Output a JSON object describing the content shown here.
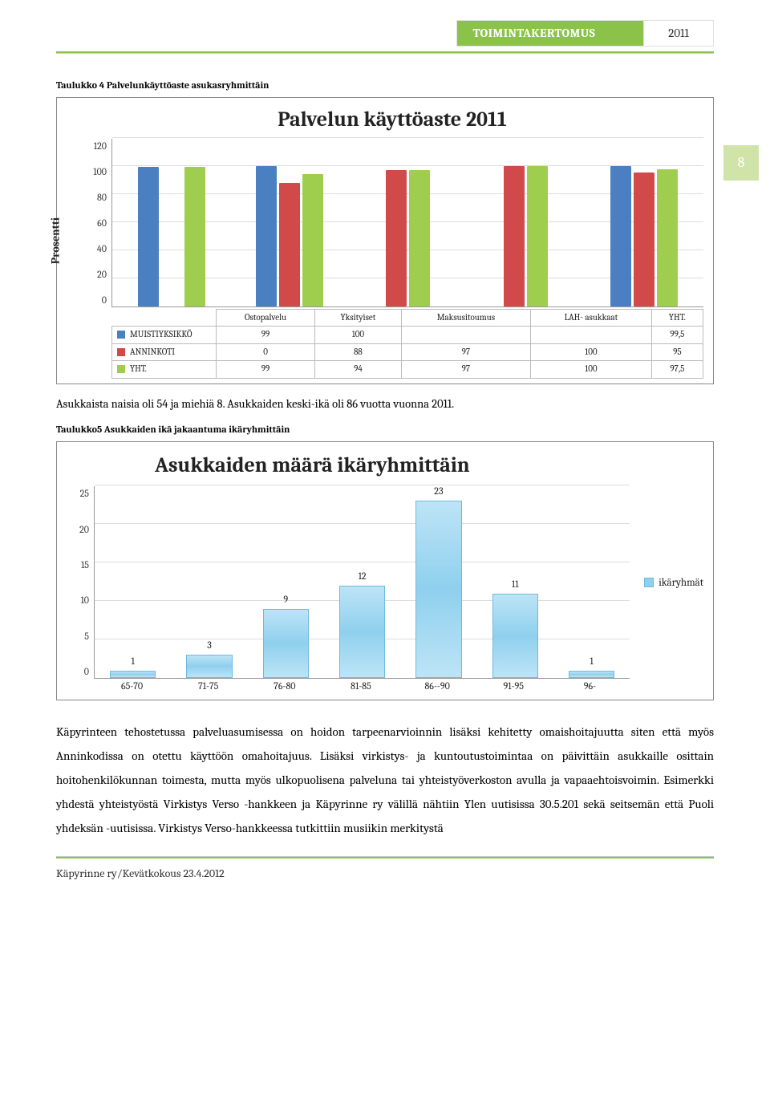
{
  "header": {
    "title": "TOIMINTAKERTOMUS",
    "year": "2011",
    "page_number": "8"
  },
  "chart1": {
    "caption": "Taulukko 4 Palvelunkäyttöaste asukasryhmittäin",
    "title": "Palvelun käyttöaste 2011",
    "ylabel": "Prosentti",
    "ylim_max": 120,
    "yticks": [
      "120",
      "100",
      "80",
      "60",
      "40",
      "20",
      "0"
    ],
    "categories": [
      "Ostopalvelu",
      "Yksityiset",
      "Maksusitoumus",
      "LAH- asukkaat",
      "YHT."
    ],
    "series": [
      {
        "name": "MUISTIYKSIKKÖ",
        "color": "#4a7fc1",
        "values": [
          "99",
          "100",
          "",
          "",
          "99,5"
        ]
      },
      {
        "name": "ANNINKOTI",
        "color": "#d14a4a",
        "values": [
          "0",
          "88",
          "97",
          "100",
          "95"
        ]
      },
      {
        "name": "YHT.",
        "color": "#9fce4e",
        "values": [
          "99",
          "94",
          "97",
          "100",
          "97,5"
        ]
      }
    ]
  },
  "para1_a": "Asukkaista naisia oli 54 ja miehiä 8. Asukkaiden keski-ikä oli 86 vuotta vuonna 2011.",
  "chart2": {
    "caption": "Taulukko5 Asukkaiden ikä jakaantuma ikäryhmittäin",
    "title": "Asukkaiden määrä ikäryhmittäin",
    "legend_label": "ikäryhmät",
    "ylim_max": 25,
    "yticks": [
      "25",
      "20",
      "15",
      "10",
      "5",
      "0"
    ],
    "categories": [
      "65-70",
      "71-75",
      "76-80",
      "81-85",
      "86--90",
      "91-95",
      "96-"
    ],
    "values": [
      1,
      3,
      9,
      12,
      23,
      11,
      1
    ]
  },
  "body_text": "Käpyrinteen tehostetussa palveluasumisessa on hoidon tarpeenarvioinnin lisäksi kehitetty omaishoitajuutta siten että myös Anninkodissa on otettu käyttöön omahoitajuus. Lisäksi virkistys- ja kuntoutustoimintaa on päivittäin asukkaille osittain hoitohenkilökunnan toimesta, mutta myös ulkopuolisena palveluna tai yhteistyöverkoston avulla ja vapaaehtoisvoimin. Esimerkki yhdestä yhteistyöstä Virkistys Verso -hankkeen ja Käpyrinne ry välillä nähtiin Ylen uutisissa 30.5.201 sekä seitsemän että Puoli yhdeksän -uutisissa. Virkistys Verso-hankkeessa tutkittiin musiikin merkitystä",
  "footer": "Käpyrinne ry/Kevätkokous 23.4.2012"
}
